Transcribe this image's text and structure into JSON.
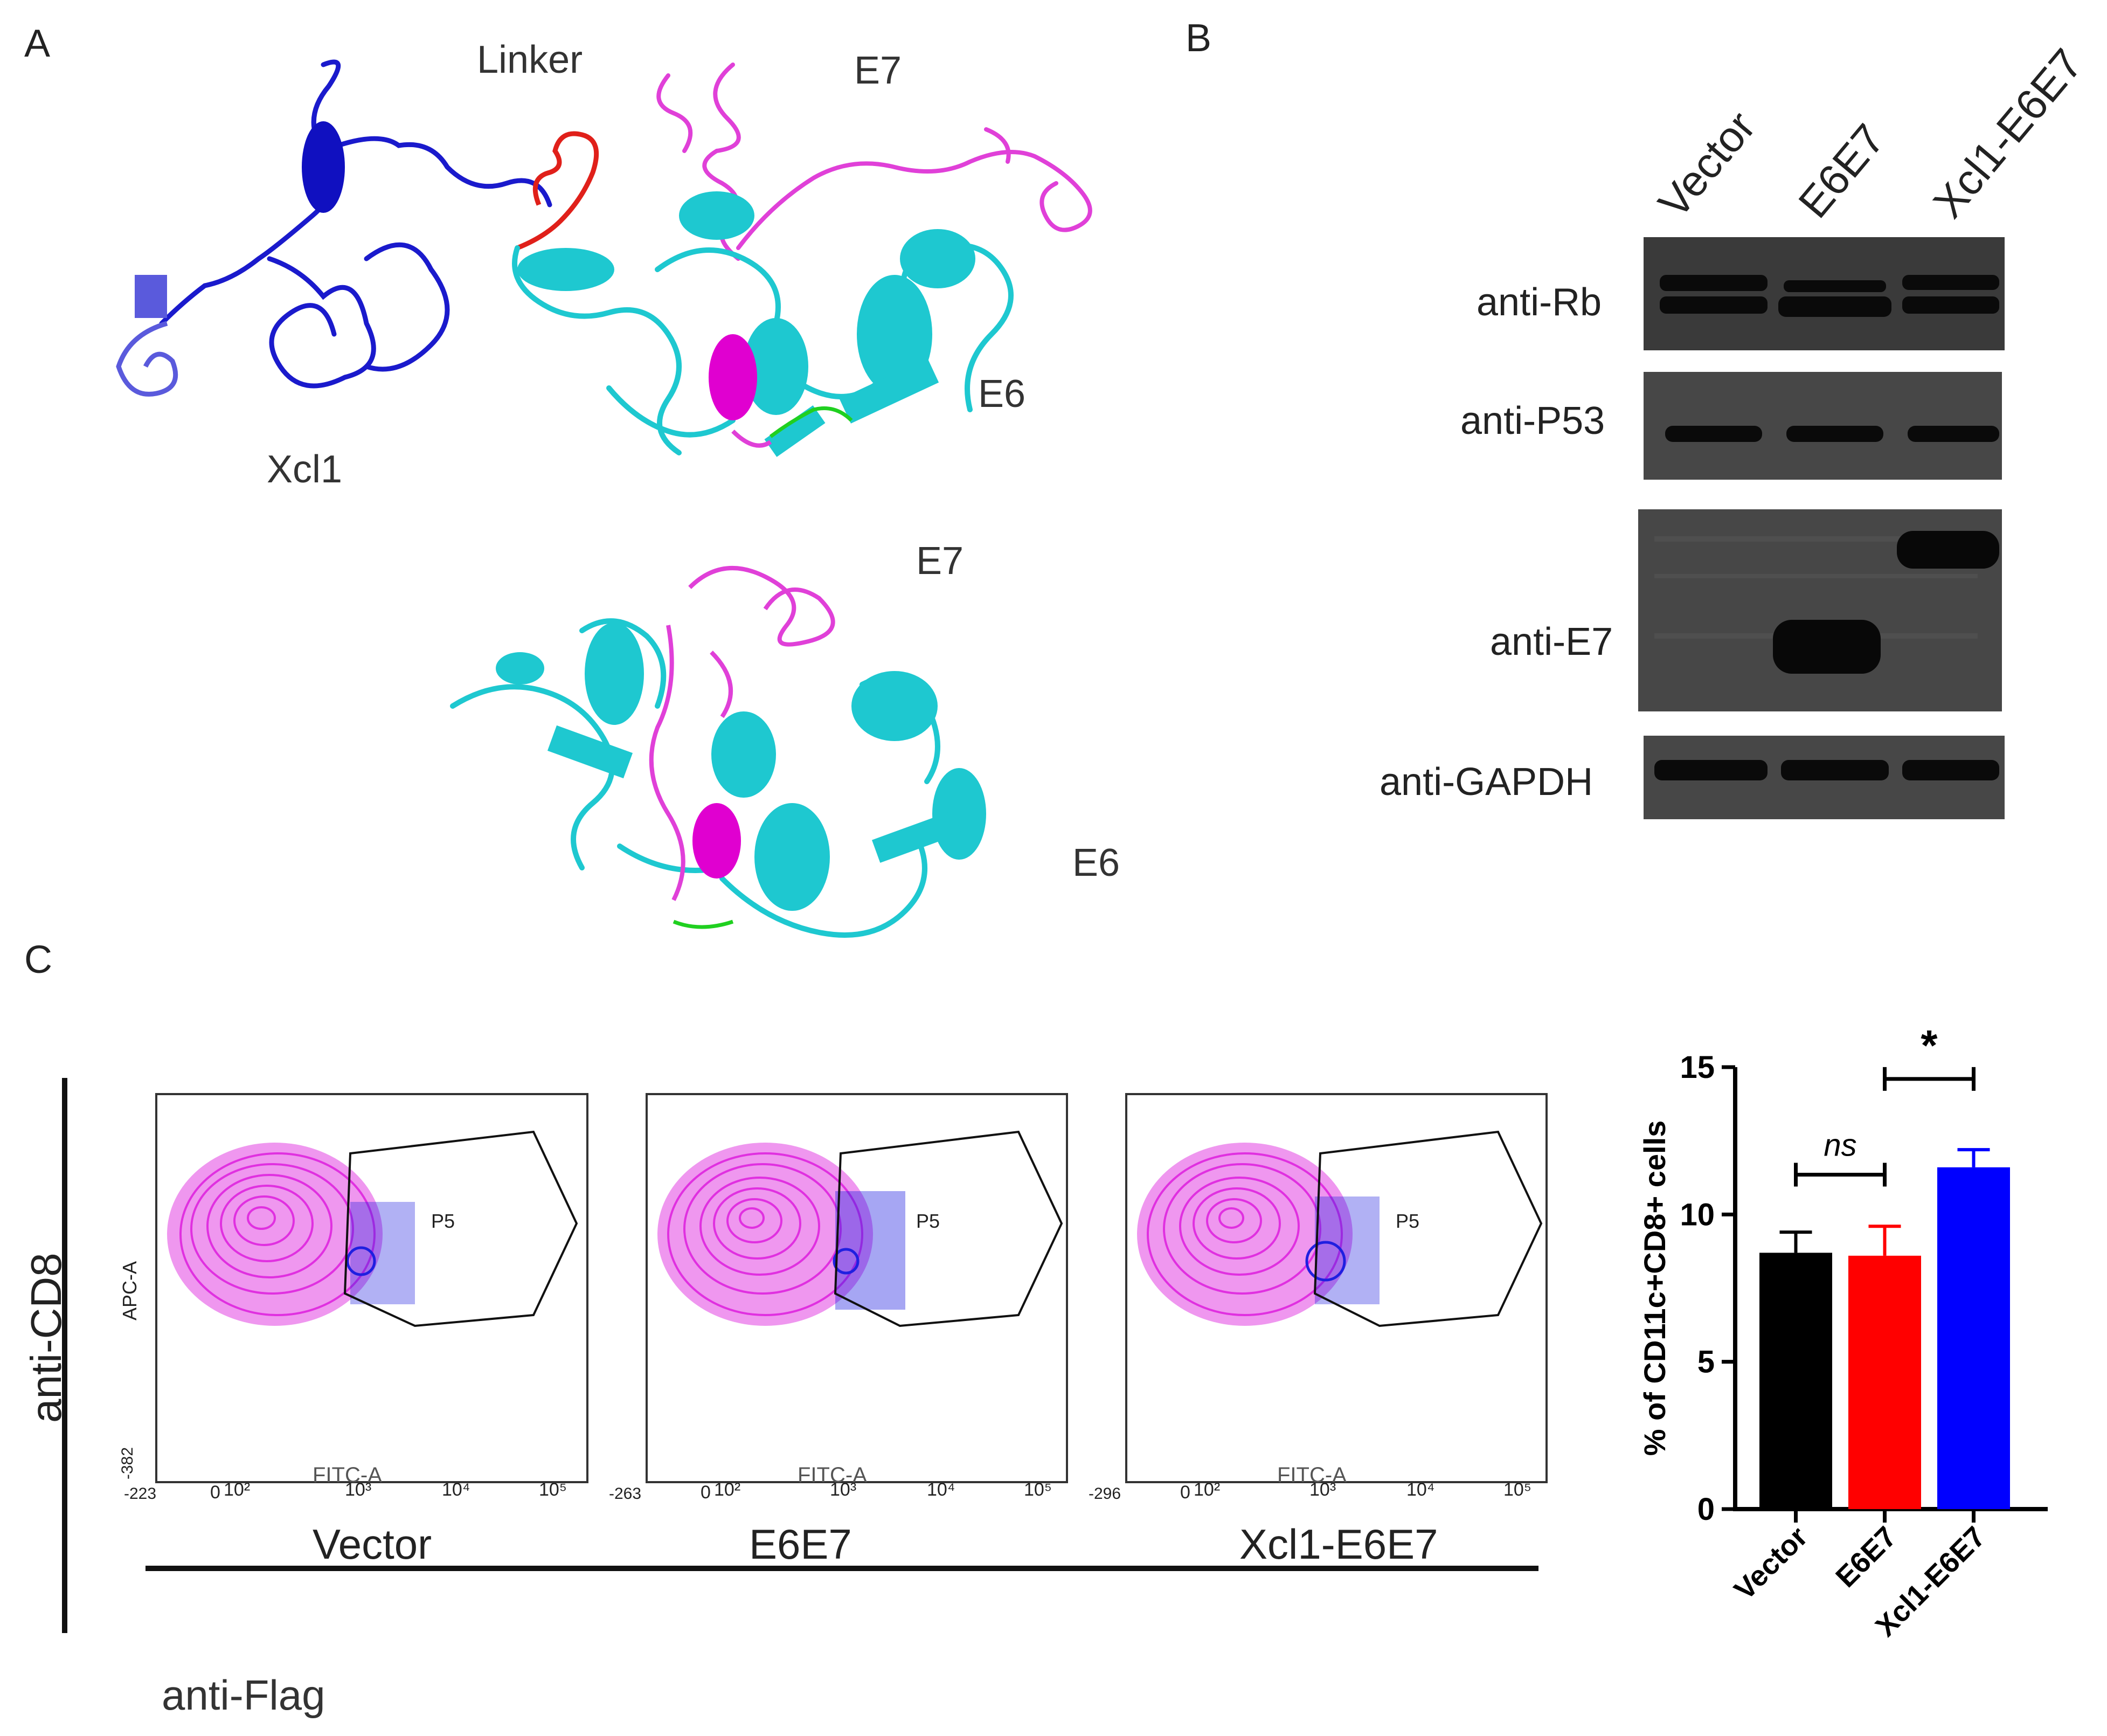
{
  "panels": {
    "A": "A",
    "B": "B",
    "C": "C"
  },
  "panelA": {
    "labels": {
      "linker": "Linker",
      "e7_top": "E7",
      "xcl1": "Xcl1",
      "e6_top": "E6",
      "e7_bottom": "E7",
      "e6_bottom": "E6"
    },
    "colors": {
      "xcl1": "#1a1acc",
      "xcl1_light": "#5a5adc",
      "linker": "#e0201a",
      "e7": "#e040d8",
      "e6": "#1ec8d0",
      "junction": "#20d020"
    }
  },
  "panelB": {
    "lanes": [
      "Vector",
      "E6E7",
      "Xcl1-E6E7"
    ],
    "blots": [
      "anti-Rb",
      "anti-P53",
      "anti-E7",
      "anti-GAPDH"
    ]
  },
  "panelC": {
    "y_axis_label": "anti-CD8",
    "x_axis_label": "anti-Flag",
    "flow_plots": [
      {
        "condition": "Vector",
        "gate": "P5",
        "x_axis": "FITC-A",
        "y_axis": "APC-A",
        "x_min_label": "-223",
        "y_min_label": "-382"
      },
      {
        "condition": "E6E7",
        "gate": "P5",
        "x_axis": "FITC-A",
        "x_min_label": "-263"
      },
      {
        "condition": "Xcl1-E6E7",
        "gate": "P5",
        "x_axis": "FITC-A",
        "x_min_label": "-296"
      }
    ],
    "tick_labels": {
      "zero": "0",
      "t2": "10²",
      "t3": "10³",
      "t4": "10⁴",
      "t5": "10⁵"
    },
    "colors": {
      "contour": "#e030e0",
      "gated": "#2020e0"
    }
  },
  "chart_data": {
    "type": "bar",
    "categories": [
      "Vector",
      "E6E7",
      "Xcl1-E6E7"
    ],
    "values": [
      8.7,
      8.6,
      11.6
    ],
    "errors": [
      0.7,
      1.0,
      0.6
    ],
    "colors": [
      "#000000",
      "#ff0000",
      "#0000ff"
    ],
    "ylabel": "% of CD11c+CD8+ cells",
    "ylim": [
      0,
      15
    ],
    "yticks": [
      0,
      5,
      10,
      15
    ],
    "significance": [
      {
        "pair": [
          "Vector",
          "E6E7"
        ],
        "label": "ns"
      },
      {
        "pair": [
          "E6E7",
          "Xcl1-E6E7"
        ],
        "label": "*"
      }
    ]
  }
}
